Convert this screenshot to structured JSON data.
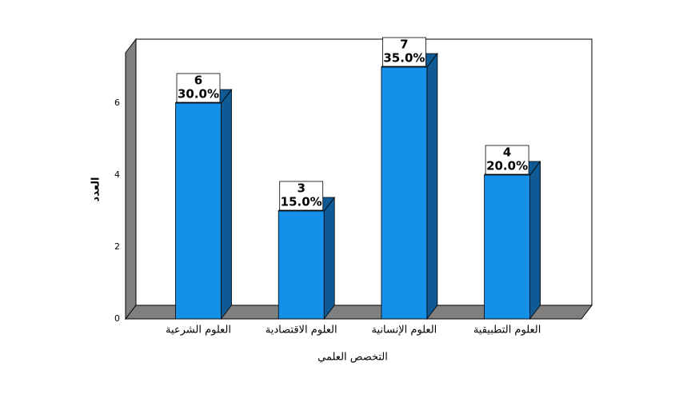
{
  "chart_data": {
    "type": "bar3d",
    "x_label": "التخصص العلمي",
    "y_label": "العدد",
    "categories": [
      "العلوم الشرعية",
      "العلوم الاقتصادية",
      "العلوم الإنسانية",
      "العلوم التطبيقية"
    ],
    "values": [
      6,
      3,
      7,
      4
    ],
    "percents": [
      30,
      15,
      35,
      20
    ],
    "percent_labels": [
      "30.0%",
      "15.0%",
      "35.0%",
      "20.0%"
    ],
    "color": "#1590e8",
    "side_color": "#0f5a94",
    "wall_color": "#808080",
    "ylim": [
      0,
      7.4
    ],
    "yticks": [
      0,
      2,
      4,
      6
    ]
  }
}
